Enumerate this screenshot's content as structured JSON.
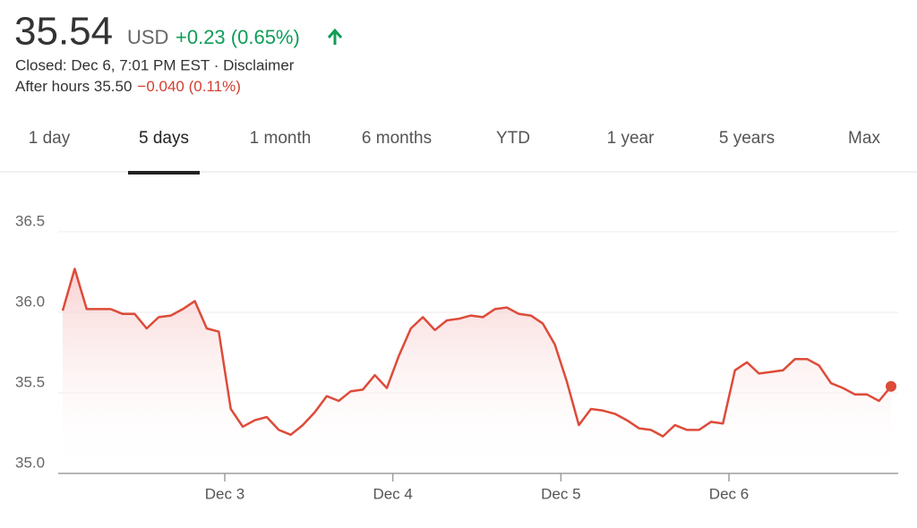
{
  "header": {
    "price": "35.54",
    "currency": "USD",
    "change": "+0.23 (0.65%)",
    "closed": "Closed: Dec 6, 7:01 PM EST · Disclaimer",
    "after_hours": "After hours 35.50",
    "after_hours_change": "−0.040 (0.11%)"
  },
  "tabs": [
    "1 day",
    "5 days",
    "1 month",
    "6 months",
    "YTD",
    "1 year",
    "5 years",
    "Max"
  ],
  "selected_tab": 1,
  "chart_data": {
    "type": "line",
    "color": "#dd4b39",
    "fill": true,
    "grid": true,
    "values": [
      36.01,
      36.27,
      36.02,
      36.02,
      36.02,
      35.99,
      35.99,
      35.9,
      35.97,
      35.98,
      36.02,
      36.07,
      35.9,
      35.88,
      35.4,
      35.29,
      35.33,
      35.35,
      35.27,
      35.24,
      35.3,
      35.38,
      35.48,
      35.45,
      35.51,
      35.52,
      35.61,
      35.53,
      35.73,
      35.9,
      35.97,
      35.89,
      35.95,
      35.96,
      35.98,
      35.97,
      36.02,
      36.03,
      35.99,
      35.98,
      35.93,
      35.8,
      35.57,
      35.3,
      35.4,
      35.39,
      35.37,
      35.33,
      35.28,
      35.27,
      35.23,
      35.3,
      35.27,
      35.27,
      35.32,
      35.31,
      35.64,
      35.69,
      35.62,
      35.63,
      35.64,
      35.71,
      35.71,
      35.67,
      35.56,
      35.53,
      35.49,
      35.49,
      35.45,
      35.54
    ],
    "xlim": [
      0,
      69
    ],
    "xticks": [
      {
        "value": 13.5,
        "label": "Dec 3"
      },
      {
        "value": 27.5,
        "label": "Dec 4"
      },
      {
        "value": 41.5,
        "label": "Dec 5"
      },
      {
        "value": 55.5,
        "label": "Dec 6"
      }
    ],
    "ylim": [
      35,
      36.5
    ],
    "yticks": [
      {
        "value": 35,
        "label": "35.0"
      },
      35.5,
      {
        "value": 36,
        "label": "36.0"
      },
      36.5
    ]
  }
}
